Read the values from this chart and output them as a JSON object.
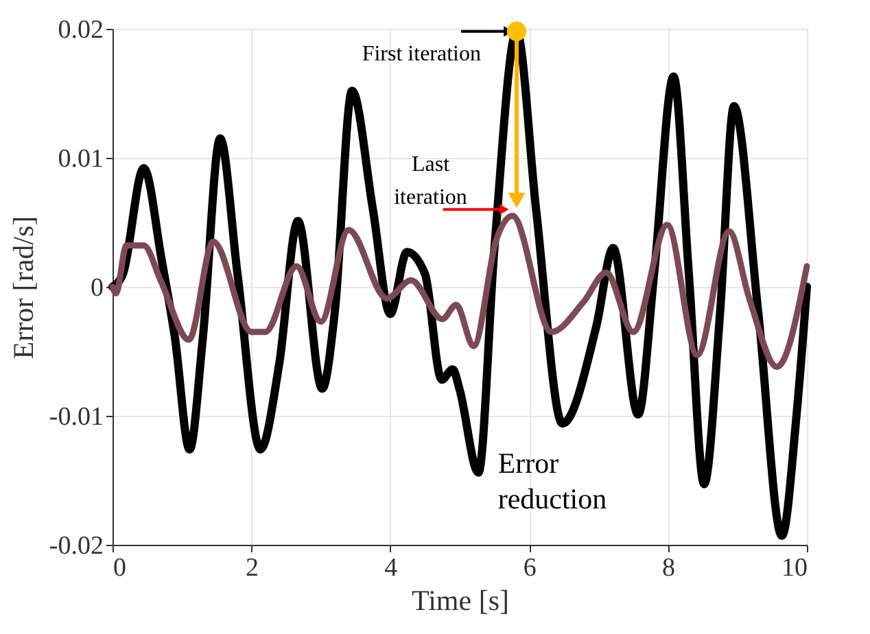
{
  "chart_data": {
    "type": "line",
    "xlabel": "Time [s]",
    "ylabel": "Error [rad/s]",
    "xlim": [
      0,
      10
    ],
    "xticks": [
      0,
      2,
      4,
      6,
      8,
      10
    ],
    "ylim": [
      -0.02,
      0.02
    ],
    "yticks": [
      -0.02,
      -0.01,
      0,
      0.01,
      0.02
    ],
    "grid": true,
    "marker": "none",
    "line_style": "solid",
    "series": [
      {
        "color": "#000000",
        "x": [
          0,
          0.15,
          0.45,
          0.71,
          0.9,
          1.11,
          1.3,
          1.55,
          1.8,
          2.13,
          2.4,
          2.67,
          3.02,
          3.2,
          3.45,
          3.75,
          4.0,
          4.24,
          4.5,
          4.74,
          4.9,
          5.0,
          5.27,
          5.5,
          5.82,
          6.1,
          6.48,
          6.97,
          7.21,
          7.57,
          7.8,
          8.08,
          8.3,
          8.52,
          8.75,
          8.95,
          9.3,
          9.64,
          9.85,
          10
        ],
        "values": [
          0,
          0.001,
          0.0092,
          0.002,
          -0.004,
          -0.0126,
          -0.004,
          0.0115,
          0.001,
          -0.0126,
          -0.006,
          0.0051,
          -0.0079,
          -0.002,
          0.0152,
          0.006,
          -0.0021,
          0.0027,
          0.001,
          -0.0072,
          -0.0064,
          -0.008,
          -0.0144,
          0.003,
          0.0198,
          0.006,
          -0.0106,
          -0.003,
          0.003,
          -0.0099,
          0.001,
          0.0163,
          0.001,
          -0.0153,
          -0.002,
          0.014,
          -0.002,
          -0.0193,
          -0.01,
          0
        ]
      },
      {
        "color": "#7b4a55",
        "x": [
          0,
          0.05,
          0.2,
          0.45,
          0.7,
          1.1,
          1.45,
          2.0,
          2.2,
          2.65,
          3.0,
          3.4,
          3.95,
          4.3,
          4.75,
          4.95,
          5.2,
          5.53,
          5.76,
          6.32,
          6.78,
          7.11,
          7.5,
          7.99,
          8.42,
          8.88,
          9.17,
          9.57,
          10
        ],
        "values": [
          0,
          -0.0005,
          0.0032,
          0.0032,
          0.0004,
          -0.0041,
          0.0035,
          -0.0035,
          -0.0035,
          0.0016,
          -0.0027,
          0.0044,
          -0.0009,
          0.0005,
          -0.0025,
          -0.0014,
          -0.0046,
          0.0037,
          0.0055,
          -0.0035,
          -0.0012,
          0.0011,
          -0.0035,
          0.0048,
          -0.0053,
          0.0043,
          -0.0009,
          -0.0062,
          0.0016
        ]
      }
    ],
    "annotations": [
      {
        "text": "First iteration",
        "x": 5.82,
        "y": 0.0198
      },
      {
        "text": "Last iteration",
        "x": 5.76,
        "y": 0.0055
      },
      "Error reduction"
    ]
  }
}
